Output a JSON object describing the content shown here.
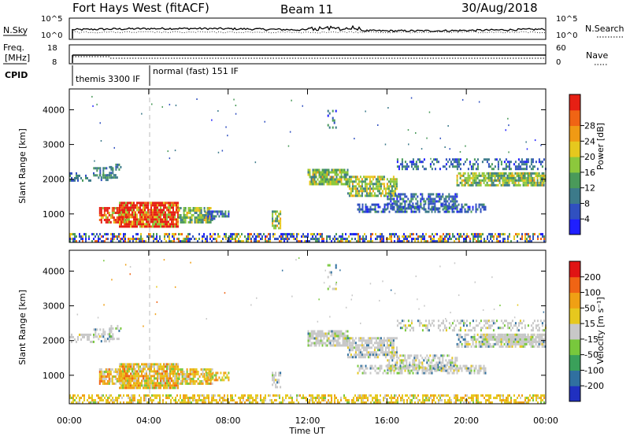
{
  "header": {
    "station": "Fort Hays West (fitACF)",
    "beam": "Beam 11",
    "date": "30/Aug/2018"
  },
  "strip_labels": {
    "nsky": "N.Sky",
    "nsky_ticks": [
      "10^5",
      "10^0"
    ],
    "nsearch": "N.Search",
    "nsearch_ticks": [
      "10^5",
      "10^0"
    ],
    "freq_line1": "Freq.",
    "freq_line2": "[MHz]",
    "freq_ticks": [
      "18",
      "8"
    ],
    "nave": "Nave",
    "nave_ticks": [
      "60",
      "0"
    ],
    "cpid": "CPID",
    "cpid_modes": [
      "themis 3300 IF",
      "normal (fast) 151 IF"
    ]
  },
  "chart_data": [
    {
      "type": "heatmap",
      "name": "power",
      "ylabel": "Slant Range [km]",
      "xlabel": "",
      "y_ticks": [
        "1000",
        "2000",
        "3000",
        "4000"
      ],
      "ylim": [
        180,
        4600
      ],
      "colorbar": {
        "label": "Power [dB]",
        "ticks": [
          "4",
          "8",
          "12",
          "16",
          "20",
          "24",
          "28"
        ],
        "colors": [
          "#1f1fff",
          "#3050c0",
          "#3c7a8a",
          "#4a9a5a",
          "#8cc83c",
          "#e6c81e",
          "#f09a14",
          "#f06414",
          "#e62014"
        ]
      }
    },
    {
      "type": "heatmap",
      "name": "velocity",
      "ylabel": "Slant Range [km]",
      "xlabel": "Time UT",
      "x_ticks": [
        "00:00",
        "04:00",
        "08:00",
        "12:00",
        "16:00",
        "20:00",
        "00:00"
      ],
      "y_ticks": [
        "1000",
        "2000",
        "3000",
        "4000"
      ],
      "ylim": [
        180,
        4600
      ],
      "colorbar": {
        "label": "Velocity [m s⁻¹]",
        "ticks": [
          "200",
          "100",
          "50",
          "15",
          "-15",
          "-50",
          "-100",
          "-200"
        ],
        "colors": [
          "#2030c0",
          "#3070a0",
          "#3aa05a",
          "#78c83c",
          "#c8c8c8",
          "#e6c81e",
          "#f0a014",
          "#f06414",
          "#e01414"
        ]
      }
    }
  ]
}
